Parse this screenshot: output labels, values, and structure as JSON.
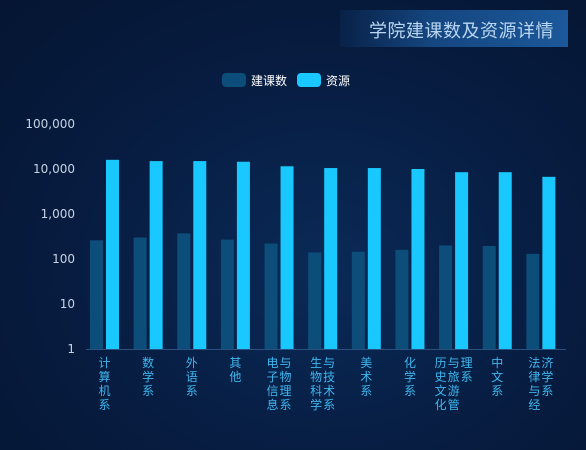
{
  "title": "学院建课数及资源详情",
  "legend": [
    {
      "name": "建课数",
      "color": "#0d4d7a"
    },
    {
      "name": "资源",
      "color": "#19c8ff"
    }
  ],
  "chart_data": {
    "type": "bar",
    "title": "学院建课数及资源详情",
    "y_scale": "log",
    "ylim": [
      1,
      100000
    ],
    "y_ticks": [
      "1",
      "10",
      "100",
      "1,000",
      "10,000",
      "100,000"
    ],
    "categories": [
      "计算机系",
      "数学系",
      "外语系",
      "其他",
      "电子信息与物理系",
      "生物科学与技术系",
      "美术系",
      "化学系",
      "历史文化与旅游管理系",
      "中文系",
      "法律与经济学系"
    ],
    "series": [
      {
        "name": "建课数",
        "color": "#0d4d7a",
        "values": [
          260,
          300,
          370,
          270,
          220,
          140,
          145,
          160,
          200,
          195,
          130
        ]
      },
      {
        "name": "资源",
        "color": "#19c8ff",
        "values": [
          16000,
          15000,
          15000,
          14500,
          11500,
          10500,
          10500,
          10000,
          8500,
          8500,
          6700
        ]
      }
    ],
    "grid": false
  }
}
